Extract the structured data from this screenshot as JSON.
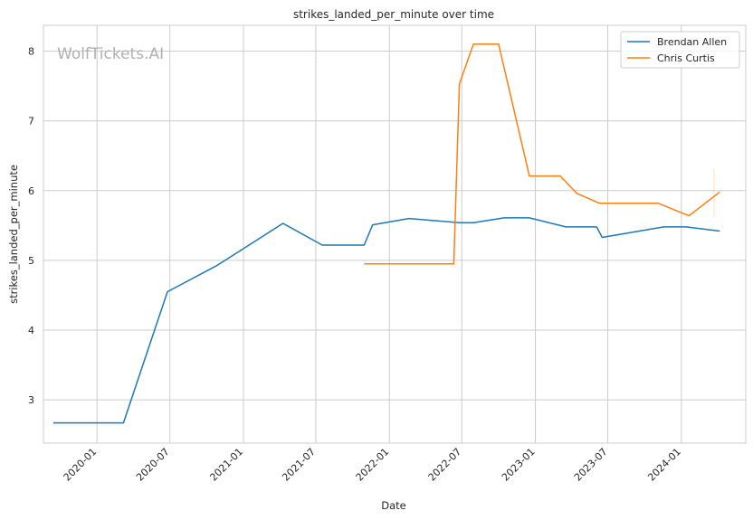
{
  "chart_data": {
    "type": "line",
    "title": "strikes_landed_per_minute over time",
    "xlabel": "Date",
    "ylabel": "strikes_landed_per_minute",
    "watermark": "WolfTickets.AI",
    "xlim": [
      "2019-08-20",
      "2024-06-10"
    ],
    "ylim": [
      2.38,
      8.37
    ],
    "yticks": [
      3,
      4,
      5,
      6,
      7,
      8
    ],
    "xticks": [
      "2020-01",
      "2020-07",
      "2021-01",
      "2021-07",
      "2022-01",
      "2022-07",
      "2023-01",
      "2023-07",
      "2024-01"
    ],
    "grid": true,
    "legend": "top-right",
    "series": [
      {
        "name": "Brendan Allen",
        "color": "#1f77b4",
        "points": [
          [
            "2019-09-14",
            2.67
          ],
          [
            "2020-03-07",
            2.67
          ],
          [
            "2020-06-25",
            4.55
          ],
          [
            "2020-10-28",
            4.93
          ],
          [
            "2021-04-10",
            5.53
          ],
          [
            "2021-07-17",
            5.22
          ],
          [
            "2021-10-30",
            5.22
          ],
          [
            "2021-11-20",
            5.51
          ],
          [
            "2022-02-19",
            5.6
          ],
          [
            "2022-06-25",
            5.54
          ],
          [
            "2022-07-30",
            5.54
          ],
          [
            "2022-10-15",
            5.61
          ],
          [
            "2022-12-17",
            5.61
          ],
          [
            "2023-03-18",
            5.48
          ],
          [
            "2023-06-03",
            5.48
          ],
          [
            "2023-06-17",
            5.33
          ],
          [
            "2023-11-18",
            5.48
          ],
          [
            "2024-01-13",
            5.48
          ],
          [
            "2024-04-06",
            5.42
          ]
        ]
      },
      {
        "name": "Chris Curtis",
        "color": "#ff7f0e",
        "points": [
          [
            "2021-10-30",
            4.95
          ],
          [
            "2022-06-11",
            4.95
          ],
          [
            "2022-06-25",
            7.53
          ],
          [
            "2022-07-30",
            8.1
          ],
          [
            "2022-10-01",
            8.1
          ],
          [
            "2022-12-17",
            6.21
          ],
          [
            "2023-03-04",
            6.21
          ],
          [
            "2023-04-15",
            5.96
          ],
          [
            "2023-06-10",
            5.82
          ],
          [
            "2023-11-04",
            5.82
          ],
          [
            "2024-01-20",
            5.64
          ],
          [
            "2024-04-06",
            5.98
          ]
        ]
      }
    ]
  }
}
